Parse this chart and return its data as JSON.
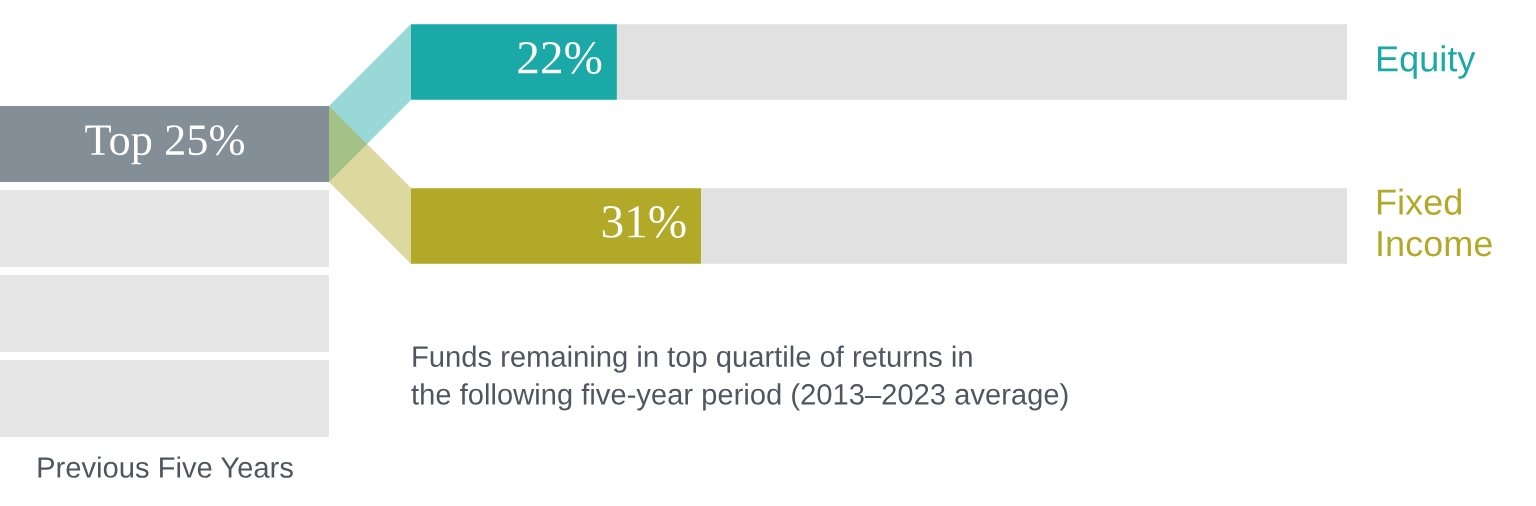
{
  "chart_data": {
    "type": "bar",
    "orientation": "horizontal",
    "stacked": true,
    "categories": [
      "Equity",
      "Fixed Income"
    ],
    "series": [
      {
        "colors": [
          "#1aa9a6",
          "#b3a928"
        ],
        "values": [
          22,
          31
        ],
        "value_labels": [
          "22%",
          "31%"
        ]
      },
      {
        "color": "#e1e1e1",
        "values": [
          78,
          69
        ]
      }
    ],
    "annotations": [
      "Top 25%",
      "Previous Five Years",
      "Funds remaining in top quartile of returns in\nthe following five-year period (2013–2023 average)"
    ]
  }
}
